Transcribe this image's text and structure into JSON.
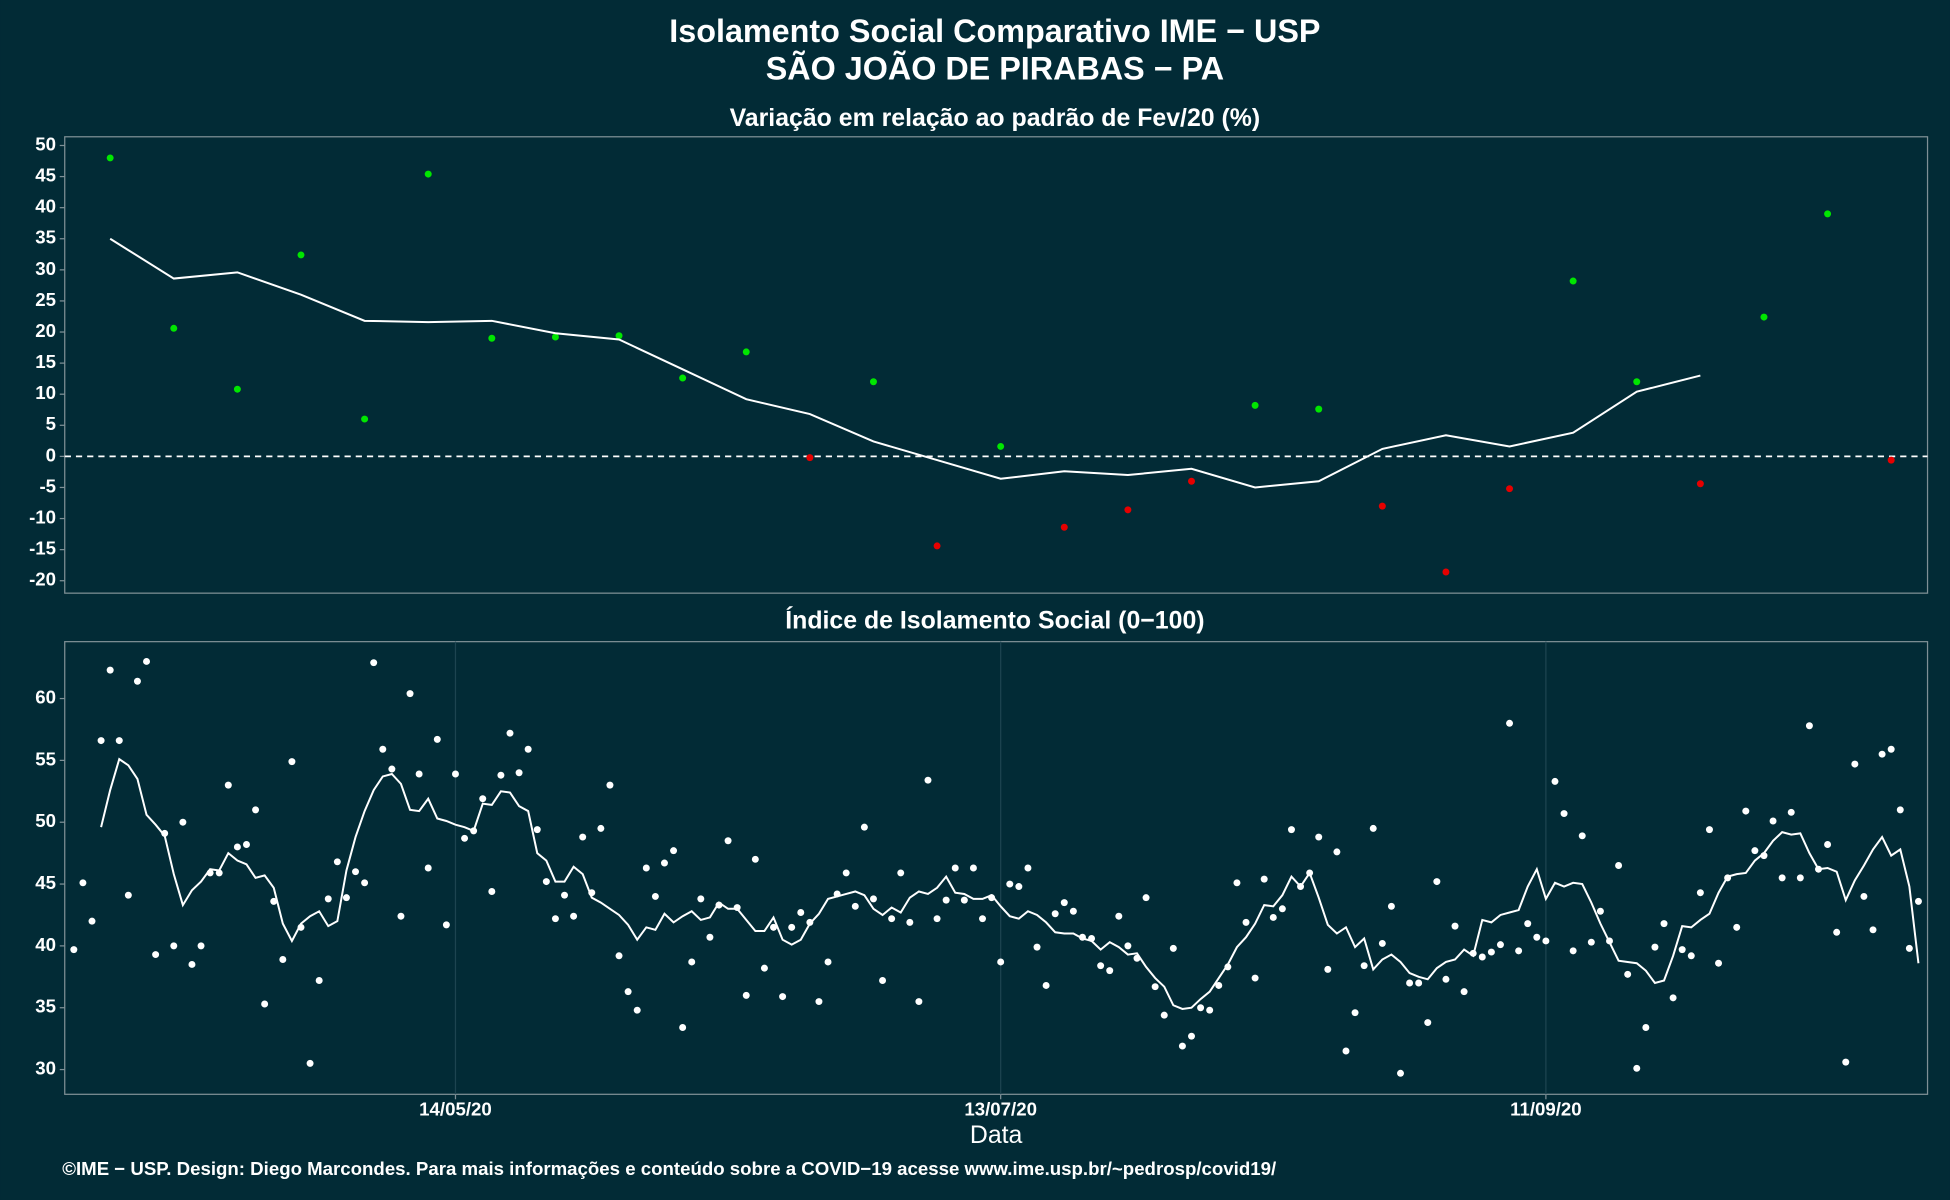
{
  "title": [
    "Isolamento Social Comparativo IME − USP",
    "SÃO JOÃO DE PIRABAS − PA"
  ],
  "caption": "©IME − USP. Design: Diego Marcondes. Para mais informações e conteúdo sobre a COVID−19 acesse www.ime.usp.br/~pedrosp/covid19/",
  "chart_data": [
    {
      "type": "scatter",
      "subtitle": "Variação em relação ao padrão de Fev/20 (%)",
      "x": [
        "06/04/20",
        "13/04/20",
        "20/04/20",
        "27/04/20",
        "04/05/20",
        "11/05/20",
        "18/05/20",
        "25/05/20",
        "01/06/20",
        "08/06/20",
        "15/06/20",
        "22/06/20",
        "29/06/20",
        "06/07/20",
        "13/07/20",
        "20/07/20",
        "27/07/20",
        "03/08/20",
        "10/08/20",
        "17/08/20",
        "24/08/20",
        "31/08/20",
        "07/09/20",
        "14/09/20",
        "21/09/20",
        "28/09/20",
        "05/10/20",
        "12/10/20",
        "19/10/20"
      ],
      "series": [
        {
          "kind": "points",
          "positive_color": "#00e600",
          "negative_color": "#e60000",
          "values": [
            48,
            20.6,
            10.8,
            32.4,
            6,
            45.4,
            19,
            19.2,
            19.4,
            12.6,
            16.8,
            -0.2,
            12,
            -14.4,
            1.6,
            -11.4,
            -8.6,
            -4,
            8.2,
            7.6,
            -8,
            -18.6,
            -5.2,
            28.2,
            12,
            -4.4,
            22.4,
            39,
            -0.6
          ]
        },
        {
          "kind": "line",
          "color": "#ffffff",
          "values": [
            35,
            28.6,
            29.6,
            26,
            21.8,
            21.6,
            21.8,
            19.8,
            18.8,
            14,
            9.2,
            6.8,
            2.4,
            -0.6,
            -3.6,
            -2.4,
            -3,
            -2,
            -5,
            -4,
            1.2,
            3.4,
            1.6,
            3.8,
            10.4,
            13,
            null,
            null,
            null
          ]
        }
      ],
      "reference_line": 0,
      "xlim": [
        "01/04/20",
        "23/10/20"
      ],
      "ylim": [
        -22,
        51.4
      ],
      "yticks": [
        -20,
        -15,
        -10,
        -5,
        0,
        5,
        10,
        15,
        20,
        25,
        30,
        35,
        40,
        45,
        50
      ]
    },
    {
      "type": "scatter",
      "subtitle": "Índice de Isolamento Social (0−100)",
      "xlabel": "Data",
      "x": [
        "02/04/20",
        "03/04/20",
        "04/04/20",
        "05/04/20",
        "06/04/20",
        "07/04/20",
        "08/04/20",
        "09/04/20",
        "10/04/20",
        "11/04/20",
        "12/04/20",
        "13/04/20",
        "14/04/20",
        "15/04/20",
        "16/04/20",
        "17/04/20",
        "18/04/20",
        "19/04/20",
        "20/04/20",
        "21/04/20",
        "22/04/20",
        "23/04/20",
        "24/04/20",
        "25/04/20",
        "26/04/20",
        "27/04/20",
        "28/04/20",
        "29/04/20",
        "30/04/20",
        "01/05/20",
        "02/05/20",
        "03/05/20",
        "04/05/20",
        "05/05/20",
        "06/05/20",
        "07/05/20",
        "08/05/20",
        "09/05/20",
        "10/05/20",
        "11/05/20",
        "12/05/20",
        "13/05/20",
        "14/05/20",
        "15/05/20",
        "16/05/20",
        "17/05/20",
        "18/05/20",
        "19/05/20",
        "20/05/20",
        "21/05/20",
        "22/05/20",
        "23/05/20",
        "24/05/20",
        "25/05/20",
        "26/05/20",
        "27/05/20",
        "28/05/20",
        "29/05/20",
        "30/05/20",
        "31/05/20",
        "01/06/20",
        "02/06/20",
        "03/06/20",
        "04/06/20",
        "05/06/20",
        "06/06/20",
        "07/06/20",
        "08/06/20",
        "09/06/20",
        "10/06/20",
        "11/06/20",
        "12/06/20",
        "13/06/20",
        "14/06/20",
        "15/06/20",
        "16/06/20",
        "17/06/20",
        "18/06/20",
        "19/06/20",
        "20/06/20",
        "21/06/20",
        "22/06/20",
        "23/06/20",
        "24/06/20",
        "25/06/20",
        "26/06/20",
        "27/06/20",
        "28/06/20",
        "29/06/20",
        "30/06/20",
        "01/07/20",
        "02/07/20",
        "03/07/20",
        "04/07/20",
        "05/07/20",
        "06/07/20",
        "07/07/20",
        "08/07/20",
        "09/07/20",
        "10/07/20",
        "11/07/20",
        "12/07/20",
        "13/07/20",
        "14/07/20",
        "15/07/20",
        "16/07/20",
        "17/07/20",
        "18/07/20",
        "19/07/20",
        "20/07/20",
        "21/07/20",
        "22/07/20",
        "23/07/20",
        "24/07/20",
        "25/07/20",
        "26/07/20",
        "27/07/20",
        "28/07/20",
        "29/07/20",
        "30/07/20",
        "31/07/20",
        "01/08/20",
        "02/08/20",
        "03/08/20",
        "04/08/20",
        "05/08/20",
        "06/08/20",
        "07/08/20",
        "08/08/20",
        "09/08/20",
        "10/08/20",
        "11/08/20",
        "12/08/20",
        "13/08/20",
        "14/08/20",
        "15/08/20",
        "16/08/20",
        "17/08/20",
        "18/08/20",
        "19/08/20",
        "20/08/20",
        "21/08/20",
        "22/08/20",
        "23/08/20",
        "24/08/20",
        "25/08/20",
        "26/08/20",
        "27/08/20",
        "28/08/20",
        "29/08/20",
        "30/08/20",
        "31/08/20",
        "01/09/20",
        "02/09/20",
        "03/09/20",
        "04/09/20",
        "05/09/20",
        "06/09/20",
        "07/09/20",
        "08/09/20",
        "09/09/20",
        "10/09/20",
        "11/09/20",
        "12/09/20",
        "13/09/20",
        "14/09/20",
        "15/09/20",
        "16/09/20",
        "17/09/20",
        "18/09/20",
        "19/09/20",
        "20/09/20",
        "21/09/20",
        "22/09/20",
        "23/09/20",
        "24/09/20",
        "25/09/20",
        "26/09/20",
        "27/09/20",
        "28/09/20",
        "29/09/20",
        "30/09/20",
        "01/10/20",
        "02/10/20",
        "03/10/20",
        "04/10/20",
        "05/10/20",
        "06/10/20",
        "07/10/20",
        "08/10/20",
        "09/10/20",
        "10/10/20",
        "11/10/20",
        "12/10/20",
        "13/10/20",
        "14/10/20",
        "15/10/20",
        "16/10/20",
        "17/10/20",
        "18/10/20",
        "19/10/20",
        "20/10/20",
        "21/10/20",
        "22/10/20"
      ],
      "series": [
        {
          "kind": "points",
          "color": "#ffffff",
          "values": [
            39.7,
            45.1,
            42,
            56.6,
            62.3,
            56.6,
            44.1,
            61.4,
            63,
            39.3,
            49.1,
            40,
            50,
            38.5,
            40,
            45.9,
            45.9,
            53,
            48,
            48.2,
            51,
            35.3,
            43.6,
            38.9,
            54.9,
            41.5,
            30.5,
            37.2,
            43.8,
            46.8,
            43.9,
            46,
            45.1,
            62.9,
            55.9,
            54.3,
            42.4,
            60.4,
            53.9,
            46.3,
            56.7,
            41.7,
            53.9,
            48.7,
            49.3,
            51.9,
            44.4,
            53.8,
            57.2,
            54,
            55.9,
            49.4,
            45.2,
            42.2,
            44.1,
            42.4,
            48.8,
            44.3,
            49.5,
            53,
            39.2,
            36.3,
            34.8,
            46.3,
            44,
            46.7,
            47.7,
            33.4,
            38.7,
            43.8,
            40.7,
            43.3,
            48.5,
            43.1,
            36,
            47,
            38.2,
            41.5,
            35.9,
            41.5,
            42.7,
            41.9,
            35.5,
            38.7,
            44.2,
            45.9,
            43.2,
            49.6,
            43.8,
            37.2,
            42.2,
            45.9,
            41.9,
            35.5,
            53.4,
            42.2,
            43.7,
            46.3,
            43.7,
            46.3,
            42.2,
            43.9,
            38.7,
            45,
            44.8,
            46.3,
            39.9,
            36.8,
            42.6,
            43.5,
            42.8,
            40.7,
            40.6,
            38.4,
            38,
            42.4,
            40,
            39,
            43.9,
            36.7,
            34.4,
            39.8,
            31.9,
            32.7,
            35,
            34.8,
            36.8,
            38.3,
            45.1,
            41.9,
            37.4,
            45.4,
            42.3,
            43,
            49.4,
            44.8,
            45.9,
            48.8,
            38.1,
            47.6,
            31.5,
            34.6,
            38.4,
            49.5,
            40.2,
            43.2,
            29.7,
            37,
            37,
            33.8,
            45.2,
            37.3,
            41.6,
            36.3,
            39.4,
            39.1,
            39.5,
            40.1,
            58,
            39.6,
            41.8,
            40.7,
            40.4,
            53.3,
            50.7,
            39.6,
            48.9,
            40.3,
            42.8,
            40.4,
            46.5,
            37.7,
            30.1,
            33.4,
            39.9,
            41.8,
            35.8,
            39.7,
            39.2,
            44.3,
            49.4,
            38.6,
            45.5,
            41.5,
            50.9,
            47.7,
            47.3,
            50.1,
            45.5,
            50.8,
            45.5,
            57.8,
            46.2,
            48.2,
            41.1,
            30.6,
            54.7,
            44,
            41.3,
            55.5,
            55.9,
            51,
            39.8,
            43.6
          ]
        },
        {
          "kind": "line",
          "color": "#ffffff",
          "values": [
            null,
            null,
            null,
            49.6,
            52.6,
            55.1,
            54.6,
            53.5,
            50.6,
            49.8,
            48.9,
            45.8,
            43.3,
            44.5,
            45.2,
            46.2,
            46.1,
            47.5,
            46.9,
            46.6,
            45.5,
            45.7,
            44.7,
            41.8,
            40.4,
            41.8,
            42.4,
            42.8,
            41.6,
            42,
            46.1,
            48.8,
            50.9,
            52.6,
            53.7,
            53.9,
            53.1,
            51,
            50.9,
            51.9,
            50.3,
            50.1,
            49.8,
            49.6,
            49.3,
            51.5,
            51.4,
            52.5,
            52.4,
            51.3,
            50.9,
            47.5,
            46.9,
            45.2,
            45.2,
            46.4,
            45.8,
            43.9,
            43.5,
            43,
            42.5,
            41.7,
            40.5,
            41.5,
            41.3,
            42.6,
            41.9,
            42.4,
            42.8,
            42.1,
            42.3,
            43.5,
            43,
            43,
            42.1,
            41.2,
            41.2,
            42.3,
            40.5,
            40.1,
            40.5,
            41.8,
            42.6,
            43.8,
            44,
            44.2,
            44.4,
            44.1,
            43,
            42.5,
            43.1,
            42.7,
            43.9,
            44.4,
            44.2,
            44.7,
            45.6,
            44.3,
            44.2,
            43.8,
            43.8,
            44.1,
            43.2,
            42.4,
            42.2,
            42.8,
            42.5,
            41.9,
            41.1,
            41,
            41,
            40.6,
            40.4,
            39.7,
            40.3,
            39.9,
            39.3,
            39.4,
            38.3,
            37.4,
            36.7,
            35.2,
            34.9,
            35,
            35.7,
            36.3,
            37.4,
            38.5,
            39.9,
            40.7,
            41.8,
            43.3,
            43.2,
            44.1,
            45.6,
            44.8,
            45.9,
            43.9,
            41.7,
            41,
            41.5,
            39.9,
            40.6,
            38.1,
            38.9,
            39.3,
            38.7,
            37.8,
            37.5,
            37.3,
            38.2,
            38.7,
            38.9,
            39.7,
            39.2,
            42.1,
            41.9,
            42.5,
            42.7,
            42.9,
            44.8,
            46.2,
            43.8,
            45.1,
            44.8,
            45.1,
            45,
            43.5,
            41.8,
            40.3,
            38.8,
            38.7,
            38.6,
            38,
            37,
            37.2,
            39.2,
            41.6,
            41.5,
            42.1,
            42.6,
            44.3,
            45.6,
            45.8,
            45.9,
            46.9,
            47.5,
            48.5,
            49.2,
            49,
            49.1,
            47.5,
            46.2,
            46.3,
            46,
            43.7,
            45.3,
            46.5,
            47.8,
            48.8,
            47.3,
            47.8,
            44.8,
            38.6
          ]
        }
      ],
      "xlim": [
        "01/04/20",
        "23/10/20"
      ],
      "xticks": [
        "14/05/20",
        "13/07/20",
        "11/09/20"
      ],
      "ylim": [
        28,
        64.6
      ],
      "yticks": [
        30,
        35,
        40,
        45,
        50,
        55,
        60
      ],
      "grid": "x"
    }
  ]
}
